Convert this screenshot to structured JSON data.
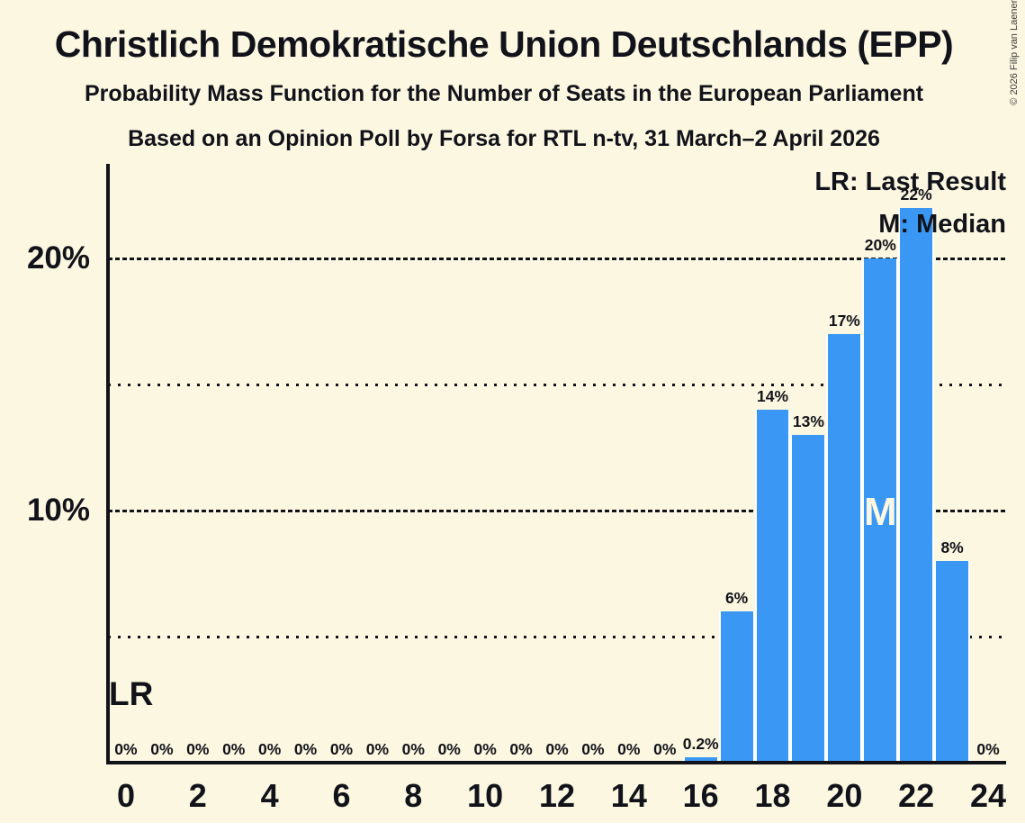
{
  "title": "Christlich Demokratische Union Deutschlands (EPP)",
  "subtitle": "Probability Mass Function for the Number of Seats in the European Parliament",
  "subsubtitle": "Based on an Opinion Poll by Forsa for RTL n-tv, 31 March–2 April 2026",
  "copyright": "© 2026 Filip van Laenen",
  "legend": {
    "last_result": "LR: Last Result",
    "median": "M: Median"
  },
  "annotations": {
    "last_result_label": "LR",
    "median_label": "M"
  },
  "colors": {
    "background": "#fcf7e1",
    "bar": "#3a98f4",
    "text": "#12131a",
    "median_text": "#fcf7e1",
    "bar_separator": "#ffffff"
  },
  "chart_data": {
    "type": "bar",
    "title": "Probability Mass Function for the Number of Seats in the European Parliament",
    "xlabel": "",
    "ylabel": "",
    "x": [
      0,
      1,
      2,
      3,
      4,
      5,
      6,
      7,
      8,
      9,
      10,
      11,
      12,
      13,
      14,
      15,
      16,
      17,
      18,
      19,
      20,
      21,
      22,
      23,
      24
    ],
    "values": [
      0,
      0,
      0,
      0,
      0,
      0,
      0,
      0,
      0,
      0,
      0,
      0,
      0,
      0,
      0,
      0,
      0.2,
      6,
      14,
      13,
      17,
      20,
      22,
      8,
      0
    ],
    "bar_labels": [
      "0%",
      "0%",
      "0%",
      "0%",
      "0%",
      "0%",
      "0%",
      "0%",
      "0%",
      "0%",
      "0%",
      "0%",
      "0%",
      "0%",
      "0%",
      "0%",
      "0.2%",
      "6%",
      "14%",
      "13%",
      "17%",
      "20%",
      "22%",
      "8%",
      "0%"
    ],
    "x_tick_labels": [
      "0",
      "2",
      "4",
      "6",
      "8",
      "10",
      "12",
      "14",
      "16",
      "18",
      "20",
      "22",
      "24"
    ],
    "y_axis_labels": [
      {
        "pct": 20,
        "label": "20%"
      },
      {
        "pct": 10,
        "label": "10%"
      }
    ],
    "gridlines": [
      {
        "pct": 20,
        "style": "dashed"
      },
      {
        "pct": 15,
        "style": "dotted"
      },
      {
        "pct": 10,
        "style": "dashed"
      },
      {
        "pct": 5,
        "style": "dotted"
      }
    ],
    "median_seat": 21,
    "last_result_seat": 0,
    "ylim": [
      0,
      23.75
    ],
    "grid": "horizontal-only",
    "legend_position": "top-right"
  }
}
